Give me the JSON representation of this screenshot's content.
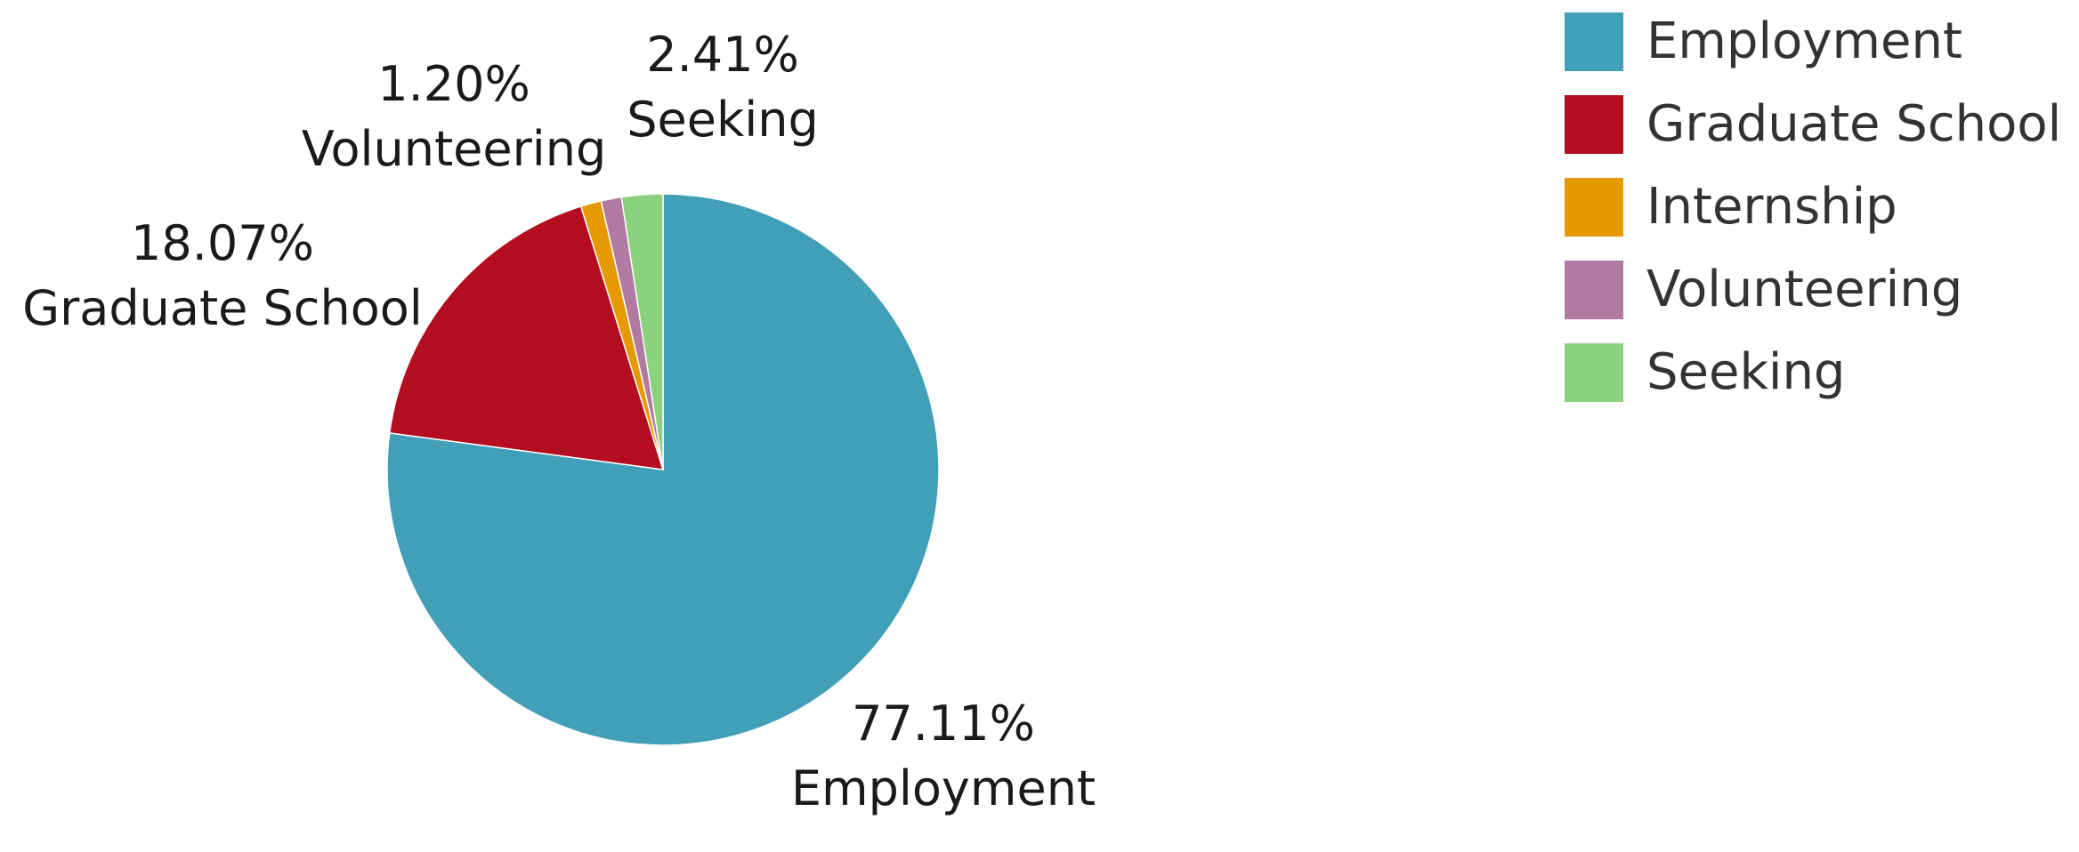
{
  "chart_data": {
    "type": "pie",
    "start_angle_deg": 0,
    "direction": "clockwise",
    "slices": [
      {
        "label": "Employment",
        "value": 77.11,
        "value_label": "77.11%",
        "color": "#429FB8",
        "show_label": true
      },
      {
        "label": "Graduate School",
        "value": 18.07,
        "value_label": "18.07%",
        "color": "#B50D20",
        "show_label": true
      },
      {
        "label": "Internship",
        "value": 1.2,
        "value_label": "",
        "color": "#E49A00",
        "show_label": false
      },
      {
        "label": "Volunteering",
        "value": 1.2,
        "value_label": "1.20%",
        "color": "#B07AA1",
        "show_label": true
      },
      {
        "label": "Seeking",
        "value": 2.41,
        "value_label": "2.41%",
        "color": "#8CD17D",
        "show_label": true
      }
    ],
    "legend": {
      "placement": "top-right",
      "items": [
        {
          "label": "Employment",
          "color": "#429FB8"
        },
        {
          "label": "Graduate School",
          "color": "#B50D20"
        },
        {
          "label": "Internship",
          "color": "#E49A00"
        },
        {
          "label": "Volunteering",
          "color": "#B07AA1"
        },
        {
          "label": "Seeking",
          "color": "#8CD17D"
        }
      ]
    }
  }
}
